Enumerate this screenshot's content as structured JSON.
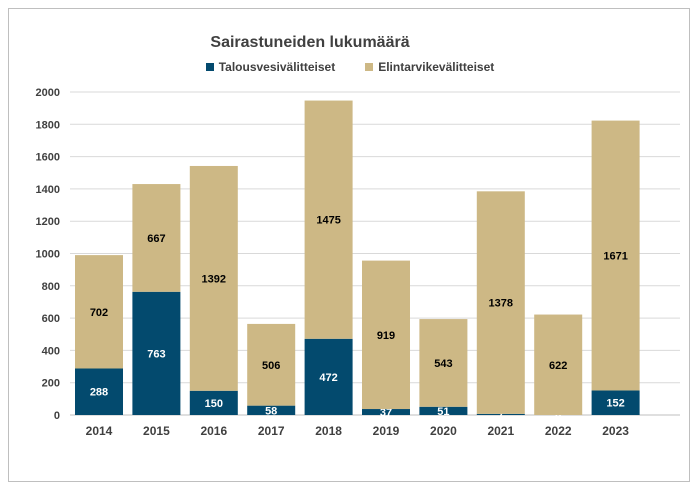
{
  "colors": {
    "water": "#034A6E",
    "food": "#CDB885",
    "grid": "#d9d9d9",
    "text": "#404040"
  },
  "chart_data": {
    "type": "bar",
    "stacked": true,
    "title": "Sairastuneiden lukumäärä",
    "categories": [
      "2014",
      "2015",
      "2016",
      "2017",
      "2018",
      "2019",
      "2020",
      "2021",
      "2022",
      "2023"
    ],
    "series": [
      {
        "name": "Talousvesivälitteiset",
        "values": [
          288,
          763,
          150,
          58,
          472,
          37,
          51,
          7,
          0,
          152
        ]
      },
      {
        "name": "Elintarvikevälitteiset",
        "values": [
          702,
          667,
          1392,
          506,
          1475,
          919,
          543,
          1378,
          622,
          1671
        ]
      }
    ],
    "ylim": [
      0,
      2000
    ],
    "yticks": [
      0,
      200,
      400,
      600,
      800,
      1000,
      1200,
      1400,
      1600,
      1800,
      2000
    ],
    "grid": true,
    "legend": "top",
    "xlabel": "",
    "ylabel": ""
  }
}
